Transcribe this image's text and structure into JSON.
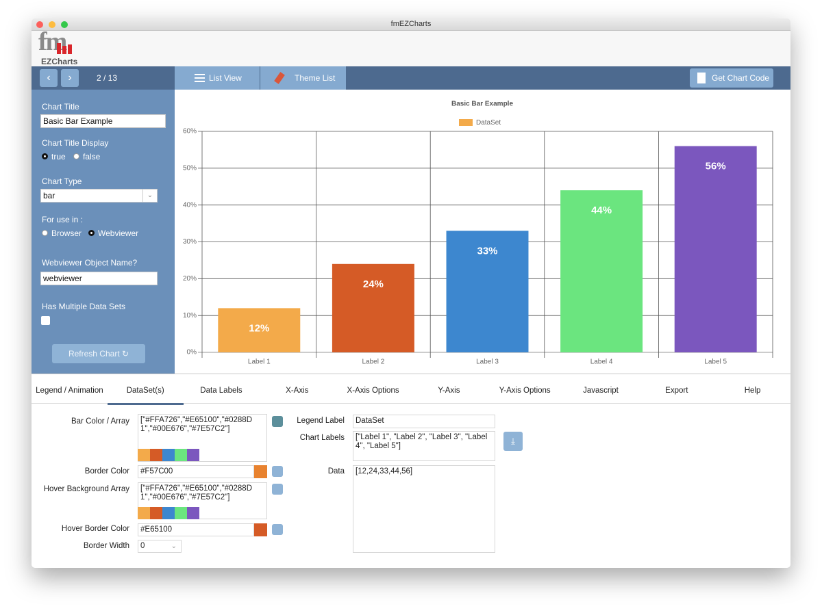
{
  "window_title": "fmEZCharts",
  "logo": {
    "mark": "fm",
    "name": "EZCharts"
  },
  "toolbar": {
    "page": "2 / 13",
    "list_view": "List View",
    "theme_list": "Theme List",
    "get_code": "Get Chart Code"
  },
  "sidebar": {
    "chart_title_label": "Chart Title",
    "chart_title_value": "Basic Bar Example",
    "title_display_label": "Chart Title Display",
    "title_display_options": [
      "true",
      "false"
    ],
    "chart_type_label": "Chart Type",
    "chart_type_value": "bar",
    "use_in_label": "For use in :",
    "use_in_options": [
      "Browser",
      "Webviewer"
    ],
    "object_name_label": "Webviewer Object Name?",
    "object_name_value": "webviewer",
    "multiple_label": "Has Multiple Data Sets",
    "refresh": "Refresh Chart"
  },
  "chart_data": {
    "type": "bar",
    "title": "Basic Bar Example",
    "categories": [
      "Label 1",
      "Label 2",
      "Label 3",
      "Label 4",
      "Label 5"
    ],
    "series": [
      {
        "name": "DataSet",
        "color": "#F3AA4A",
        "colors": [
          "#F3AA4A",
          "#D55B26",
          "#3D87CF",
          "#6BE57F",
          "#7B57BE"
        ],
        "values": [
          12,
          24,
          33,
          44,
          56
        ],
        "value_labels": [
          "12%",
          "24%",
          "33%",
          "44%",
          "56%"
        ]
      }
    ],
    "ylim": [
      0,
      60
    ],
    "yticks": [
      {
        "value": 0,
        "label": "0%"
      },
      {
        "value": 10,
        "label": "10%"
      },
      {
        "value": 20,
        "label": "20%"
      },
      {
        "value": 30,
        "label": "30%"
      },
      {
        "value": 40,
        "label": "40%"
      },
      {
        "value": 50,
        "label": "50%"
      },
      {
        "value": 60,
        "label": "60%"
      }
    ],
    "grid": true,
    "legend": "top"
  },
  "tabs": [
    "Legend / Animation",
    "DataSet(s)",
    "Data Labels",
    "X-Axis",
    "X-Axis Options",
    "Y-Axis",
    "Y-Axis Options",
    "Javascript",
    "Export",
    "Help"
  ],
  "active_tab": 1,
  "form": {
    "bar_color_label": "Bar Color / Array",
    "bar_color_value": "[\"#FFA726\",\"#E65100\",\"#0288D1\",\"#00E676\",\"#7E57C2\"]",
    "border_color_label": "Border Color",
    "border_color_value": "#F57C00",
    "hover_bg_label": "Hover Background Array",
    "hover_bg_value": "[\"#FFA726\",\"#E65100\",\"#0288D1\",\"#00E676\",\"#7E57C2\"]",
    "hover_border_label": "Hover Border Color",
    "hover_border_value": "#E65100",
    "border_width_label": "Border Width",
    "border_width_value": "0",
    "legend_label_label": "Legend Label",
    "legend_label_value": "DataSet",
    "chart_labels_label": "Chart Labels",
    "chart_labels_value": "[\"Label 1\", \"Label 2\", \"Label 3\", \"Label 4\", \"Label 5\"]",
    "data_label": "Data",
    "data_value": "[12,24,33,44,56]"
  }
}
